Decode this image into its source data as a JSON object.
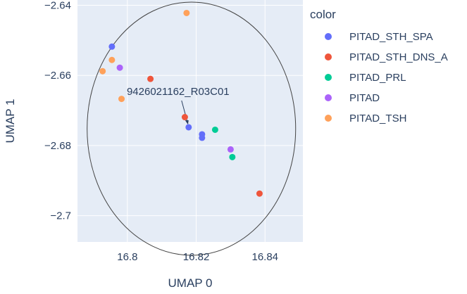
{
  "chart_data": {
    "type": "scatter",
    "xlabel": "UMAP 0",
    "ylabel": "UMAP 1",
    "xlim": [
      16.7855,
      16.851
    ],
    "ylim": [
      -2.7075,
      -2.6385
    ],
    "x_ticks": [
      {
        "value": 16.8,
        "label": "16.8"
      },
      {
        "value": 16.82,
        "label": "16.82"
      },
      {
        "value": 16.84,
        "label": "16.84"
      }
    ],
    "y_ticks": [
      {
        "value": -2.64,
        "label": "−2.64"
      },
      {
        "value": -2.66,
        "label": "−2.66"
      },
      {
        "value": -2.68,
        "label": "−2.68"
      },
      {
        "value": -2.7,
        "label": "−2.7"
      }
    ],
    "grid": true,
    "legend": {
      "title": "color",
      "placement": "right"
    },
    "series": [
      {
        "name": "PITAD_STH_SPA",
        "color": "#636efa",
        "points": [
          [
            16.7955,
            -2.6518
          ],
          [
            16.8178,
            -2.6748
          ],
          [
            16.8217,
            -2.6768
          ],
          [
            16.8217,
            -2.6778
          ]
        ]
      },
      {
        "name": "PITAD_STH_DNS_A",
        "color": "#EF553B",
        "points": [
          [
            16.8067,
            -2.661
          ],
          [
            16.8167,
            -2.6719
          ],
          [
            16.8384,
            -2.6937
          ]
        ]
      },
      {
        "name": "PITAD_PRL",
        "color": "#00cc96",
        "points": [
          [
            16.8255,
            -2.6755
          ],
          [
            16.8305,
            -2.6833
          ]
        ]
      },
      {
        "name": "PITAD",
        "color": "#ab63fa",
        "points": [
          [
            16.7978,
            -2.6578
          ],
          [
            16.83,
            -2.6811
          ]
        ]
      },
      {
        "name": "PITAD_TSH",
        "color": "#FFA15A",
        "points": [
          [
            16.8172,
            -2.6422
          ],
          [
            16.7955,
            -2.6556
          ],
          [
            16.7928,
            -2.6588
          ],
          [
            16.7983,
            -2.6667
          ]
        ]
      }
    ],
    "annotations": [
      {
        "text": "9426021162_R03C01",
        "point": [
          16.8178,
          -2.6748
        ]
      }
    ],
    "shapes": [
      {
        "type": "circle",
        "center": [
          16.8186,
          -2.6752
        ],
        "radius_x": 0.0303,
        "radius_y": 0.0361
      }
    ]
  }
}
